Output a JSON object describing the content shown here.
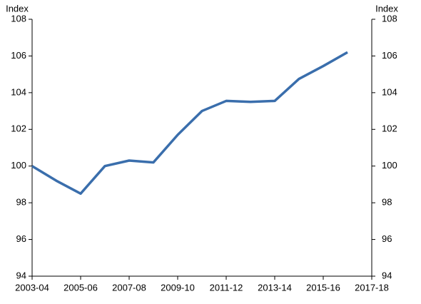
{
  "chart_data": {
    "type": "line",
    "y_label": "Index",
    "y2_label": "Index",
    "categories": [
      "2003-04",
      null,
      "2005-06",
      null,
      "2007-08",
      null,
      "2009-10",
      null,
      "2011-12",
      null,
      "2013-14",
      null,
      "2015-16",
      null,
      "2017-18"
    ],
    "series": [
      {
        "color": "#3a6eac",
        "values": [
          100,
          99.2,
          98.5,
          100,
          100.3,
          100.2,
          101.7,
          103,
          103.55,
          103.5,
          103.55,
          104.75,
          105.45,
          106.2,
          null
        ]
      }
    ],
    "ylim": [
      94,
      108
    ],
    "yticks": [
      94,
      96,
      98,
      100,
      102,
      104,
      106,
      108
    ],
    "y2lim": [
      94,
      108
    ],
    "y2ticks": [
      94,
      96,
      98,
      100,
      102,
      104,
      106,
      108
    ],
    "grid": false
  }
}
